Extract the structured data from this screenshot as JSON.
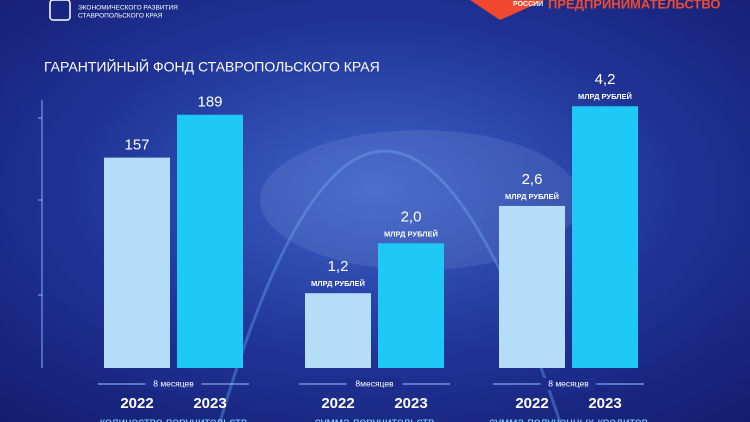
{
  "header": {
    "ministry_line1": "ЭКОНОМИЧЕСКОГО РАЗВИТИЯ",
    "ministry_line2": "СТАВРОПОЛЬСКОГО КРАЯ",
    "brand_small": "РОССИИ",
    "brand": "ПРЕДПРИНИМАТЕЛЬСТВО"
  },
  "title": "ГАРАНТИЙНЫЙ ФОНД СТАВРОПОЛЬСКОГО КРАЯ",
  "chart_data": [
    {
      "type": "bar",
      "categories": [
        "2022",
        "2023"
      ],
      "values": [
        157,
        189
      ],
      "colors": [
        "#b4def8",
        "#1fc9f6"
      ],
      "ylim": [
        0,
        200
      ],
      "period": "8 месяцев",
      "caption": "количество поручительств"
    },
    {
      "type": "bar",
      "categories": [
        "2022",
        "2023"
      ],
      "values": [
        1.2,
        2.0
      ],
      "value_labels": [
        "1,2",
        "2,0"
      ],
      "unit": "МЛРД РУБЛЕЙ",
      "colors": [
        "#b4def8",
        "#1fc9f6"
      ],
      "ylim": [
        0,
        4.3
      ],
      "period": "8месяцев",
      "caption": "сумма поручительств"
    },
    {
      "type": "bar",
      "categories": [
        "2022",
        "2023"
      ],
      "values": [
        2.6,
        4.2
      ],
      "value_labels": [
        "2,6",
        "4,2"
      ],
      "unit": "МЛРД РУБЛЕЙ",
      "colors": [
        "#b4def8",
        "#1fc9f6"
      ],
      "ylim": [
        0,
        4.3
      ],
      "period": "8 месяцев",
      "caption": "сумма полученных кредитов"
    }
  ]
}
